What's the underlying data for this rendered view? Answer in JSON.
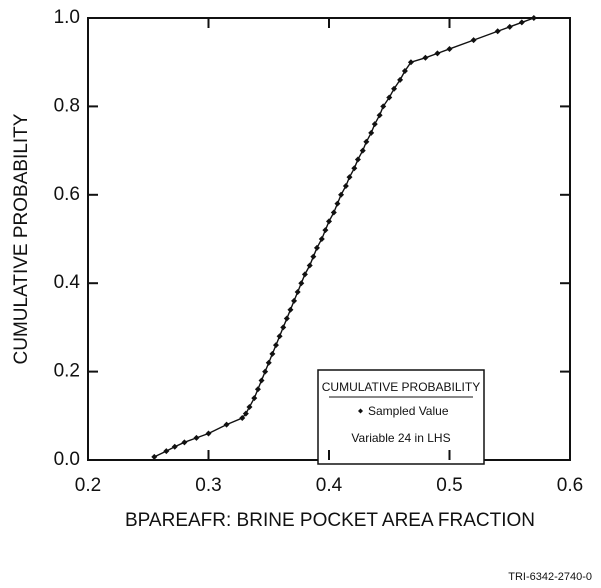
{
  "chart_data": {
    "type": "line",
    "xlabel": "BPAREAFR: BRINE POCKET AREA FRACTION",
    "ylabel": "CUMULATIVE PROBABILITY",
    "footer": "TRI-6342-2740-0",
    "legend": {
      "title": "CUMULATIVE PROBABILITY",
      "note": "Variable 24 in LHS"
    },
    "xlim": [
      0.2,
      0.6
    ],
    "xticks": [
      0.2,
      0.3,
      0.4,
      0.5,
      0.6
    ],
    "ylim": [
      0,
      1
    ],
    "yticks": [
      {
        "value": 0,
        "label": "0.0"
      },
      0.2,
      0.4,
      0.6,
      0.8,
      {
        "value": 1,
        "label": "1.0"
      }
    ],
    "series": [
      {
        "name": "Sampled Value",
        "color": "#111111",
        "x": [
          0.255,
          0.265,
          0.272,
          0.28,
          0.29,
          0.3,
          0.315,
          0.328,
          0.331,
          0.334,
          0.338,
          0.341,
          0.344,
          0.347,
          0.35,
          0.353,
          0.356,
          0.359,
          0.362,
          0.365,
          0.368,
          0.371,
          0.374,
          0.377,
          0.38,
          0.384,
          0.387,
          0.39,
          0.394,
          0.397,
          0.4,
          0.404,
          0.407,
          0.41,
          0.414,
          0.417,
          0.421,
          0.424,
          0.428,
          0.431,
          0.435,
          0.438,
          0.442,
          0.445,
          0.45,
          0.454,
          0.459,
          0.463,
          0.468,
          0.48,
          0.49,
          0.5,
          0.52,
          0.54,
          0.55,
          0.56,
          0.57
        ],
        "values": [
          0.007,
          0.02,
          0.03,
          0.04,
          0.05,
          0.06,
          0.08,
          0.095,
          0.105,
          0.12,
          0.14,
          0.16,
          0.18,
          0.2,
          0.22,
          0.24,
          0.26,
          0.28,
          0.3,
          0.32,
          0.34,
          0.36,
          0.38,
          0.4,
          0.42,
          0.44,
          0.46,
          0.48,
          0.5,
          0.52,
          0.54,
          0.56,
          0.58,
          0.6,
          0.62,
          0.64,
          0.66,
          0.68,
          0.7,
          0.72,
          0.74,
          0.76,
          0.78,
          0.8,
          0.82,
          0.84,
          0.86,
          0.88,
          0.9,
          0.91,
          0.92,
          0.93,
          0.95,
          0.97,
          0.98,
          0.99,
          1.0
        ]
      }
    ]
  }
}
